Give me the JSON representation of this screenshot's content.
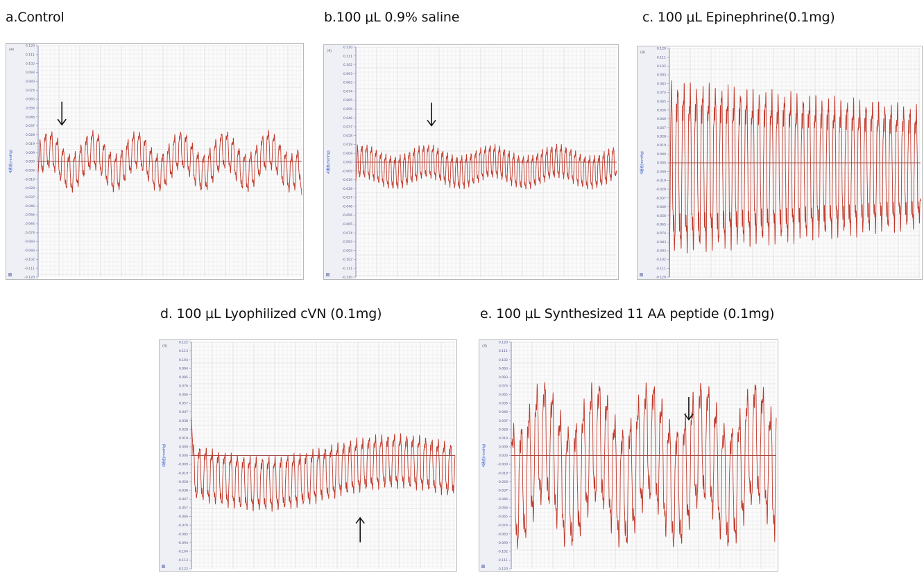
{
  "chart_data": [
    {
      "id": "a",
      "type": "line",
      "title": "a.Control",
      "channel_label": "(4)",
      "ylabel": "4通道(mmHg)",
      "ylim": [
        -0.12,
        0.12
      ],
      "y_ticks": [
        "0.120",
        "0.111",
        "0.102",
        "0.093",
        "0.083",
        "0.074",
        "0.065",
        "0.056",
        "0.046",
        "0.037",
        "0.028",
        "0.019",
        "0.009",
        "0.000",
        "-0.009",
        "-0.019",
        "-0.028",
        "-0.037",
        "-0.046",
        "-0.056",
        "-0.065",
        "-0.074",
        "-0.083",
        "-0.093",
        "-0.102",
        "-0.111",
        "-0.120"
      ],
      "baseline": 0,
      "arrow": {
        "direction": "down",
        "x_fraction": 0.09
      },
      "series": [
        {
          "color": "#c0392b",
          "cycles": 45,
          "amp": 0.018,
          "mid": 0.0,
          "mod_amp": 0.012,
          "mod_cycles": 6,
          "start_value": -0.012,
          "end_value": -0.035
        }
      ],
      "grid": true
    },
    {
      "id": "b",
      "type": "line",
      "title": "b.100 μL  0.9% saline",
      "channel_label": "(4)",
      "ylabel": "4通道(mmHg)",
      "ylim": [
        -0.12,
        0.12
      ],
      "y_ticks": [
        "0.120",
        "0.111",
        "0.102",
        "0.093",
        "0.083",
        "0.074",
        "0.065",
        "0.056",
        "0.046",
        "0.037",
        "0.028",
        "0.019",
        "0.009",
        "0.000",
        "-0.009",
        "-0.019",
        "-0.028",
        "-0.037",
        "-0.046",
        "-0.056",
        "-0.065",
        "-0.074",
        "-0.083",
        "-0.093",
        "-0.102",
        "-0.111",
        "-0.120"
      ],
      "baseline": 0,
      "arrow": {
        "direction": "down",
        "x_fraction": 0.29
      },
      "series": [
        {
          "color": "#c0392b",
          "cycles": 55,
          "amp": 0.016,
          "mid": -0.005,
          "mod_amp": 0.006,
          "mod_cycles": 4,
          "start_value": -0.02,
          "end_value": -0.01
        }
      ],
      "grid": true
    },
    {
      "id": "c",
      "type": "line",
      "title": "c. 100 μL Epinephrine(0.1mg)",
      "channel_label": "(4)",
      "ylabel": "4通道(mmHg)",
      "ylim": [
        -0.12,
        0.12
      ],
      "y_ticks": [
        "0.120",
        "0.111",
        "0.102",
        "0.093",
        "0.083",
        "0.074",
        "0.065",
        "0.056",
        "0.046",
        "0.037",
        "0.028",
        "0.019",
        "0.009",
        "0.000",
        "-0.009",
        "-0.019",
        "-0.028",
        "-0.037",
        "-0.046",
        "-0.056",
        "-0.065",
        "-0.074",
        "-0.083",
        "-0.093",
        "-0.102",
        "-0.111",
        "-0.120"
      ],
      "baseline": 0,
      "arrow": null,
      "series": [
        {
          "color": "#c0392b",
          "cycles": 40,
          "amp": 0.082,
          "mid": -0.005,
          "mod_amp": 0.0,
          "mod_cycles": 1,
          "start_value": -0.12,
          "end_value": -0.04,
          "decay_to": 0.058
        }
      ],
      "grid": true
    },
    {
      "id": "d",
      "type": "line",
      "title": "d. 100 μL Lyophilized cVN (0.1mg)",
      "channel_label": "(4)",
      "ylabel": "4通道(mmHg)",
      "ylim": [
        -0.12,
        0.12
      ],
      "y_ticks": [
        "0.122",
        "0.113",
        "0.104",
        "0.094",
        "0.085",
        "0.076",
        "0.066",
        "0.057",
        "0.047",
        "0.038",
        "0.028",
        "0.019",
        "0.009",
        "0.000",
        "-0.009",
        "-0.019",
        "-0.028",
        "-0.038",
        "-0.047",
        "-0.057",
        "-0.066",
        "-0.076",
        "-0.085",
        "-0.094",
        "-0.104",
        "-0.113",
        "-0.122"
      ],
      "baseline": 0,
      "arrow": {
        "direction": "up",
        "x_fraction": 0.64
      },
      "series": [
        {
          "color": "#c0392b",
          "cycles": 42,
          "amp": 0.026,
          "mid": -0.018,
          "mod_amp": 0.012,
          "mod_cycles": 1,
          "start_value": 0.04,
          "end_value": 0.0
        }
      ],
      "grid": true
    },
    {
      "id": "e",
      "type": "line",
      "title": "e. 100 μL Synthesized 11 AA peptide (0.1mg)",
      "channel_label": "(4)",
      "ylabel": "4通道(mmHg)",
      "ylim": [
        -0.12,
        0.12
      ],
      "y_ticks": [
        "0.120",
        "0.111",
        "0.102",
        "0.093",
        "0.083",
        "0.074",
        "0.065",
        "0.056",
        "0.046",
        "0.037",
        "0.028",
        "0.019",
        "0.009",
        "0.000",
        "-0.009",
        "-0.019",
        "-0.028",
        "-0.037",
        "-0.046",
        "-0.056",
        "-0.065",
        "-0.074",
        "-0.083",
        "-0.093",
        "-0.102",
        "-0.111",
        "-0.120"
      ],
      "baseline": 0,
      "arrow": {
        "direction": "down",
        "x_fraction": 0.67
      },
      "series": [
        {
          "color": "#c0392b",
          "cycles": 34,
          "amp": 0.06,
          "mid": -0.01,
          "mod_amp": 0.025,
          "mod_cycles": 5,
          "start_value": 0.015,
          "end_value": 0.04
        }
      ],
      "grid": true
    }
  ]
}
